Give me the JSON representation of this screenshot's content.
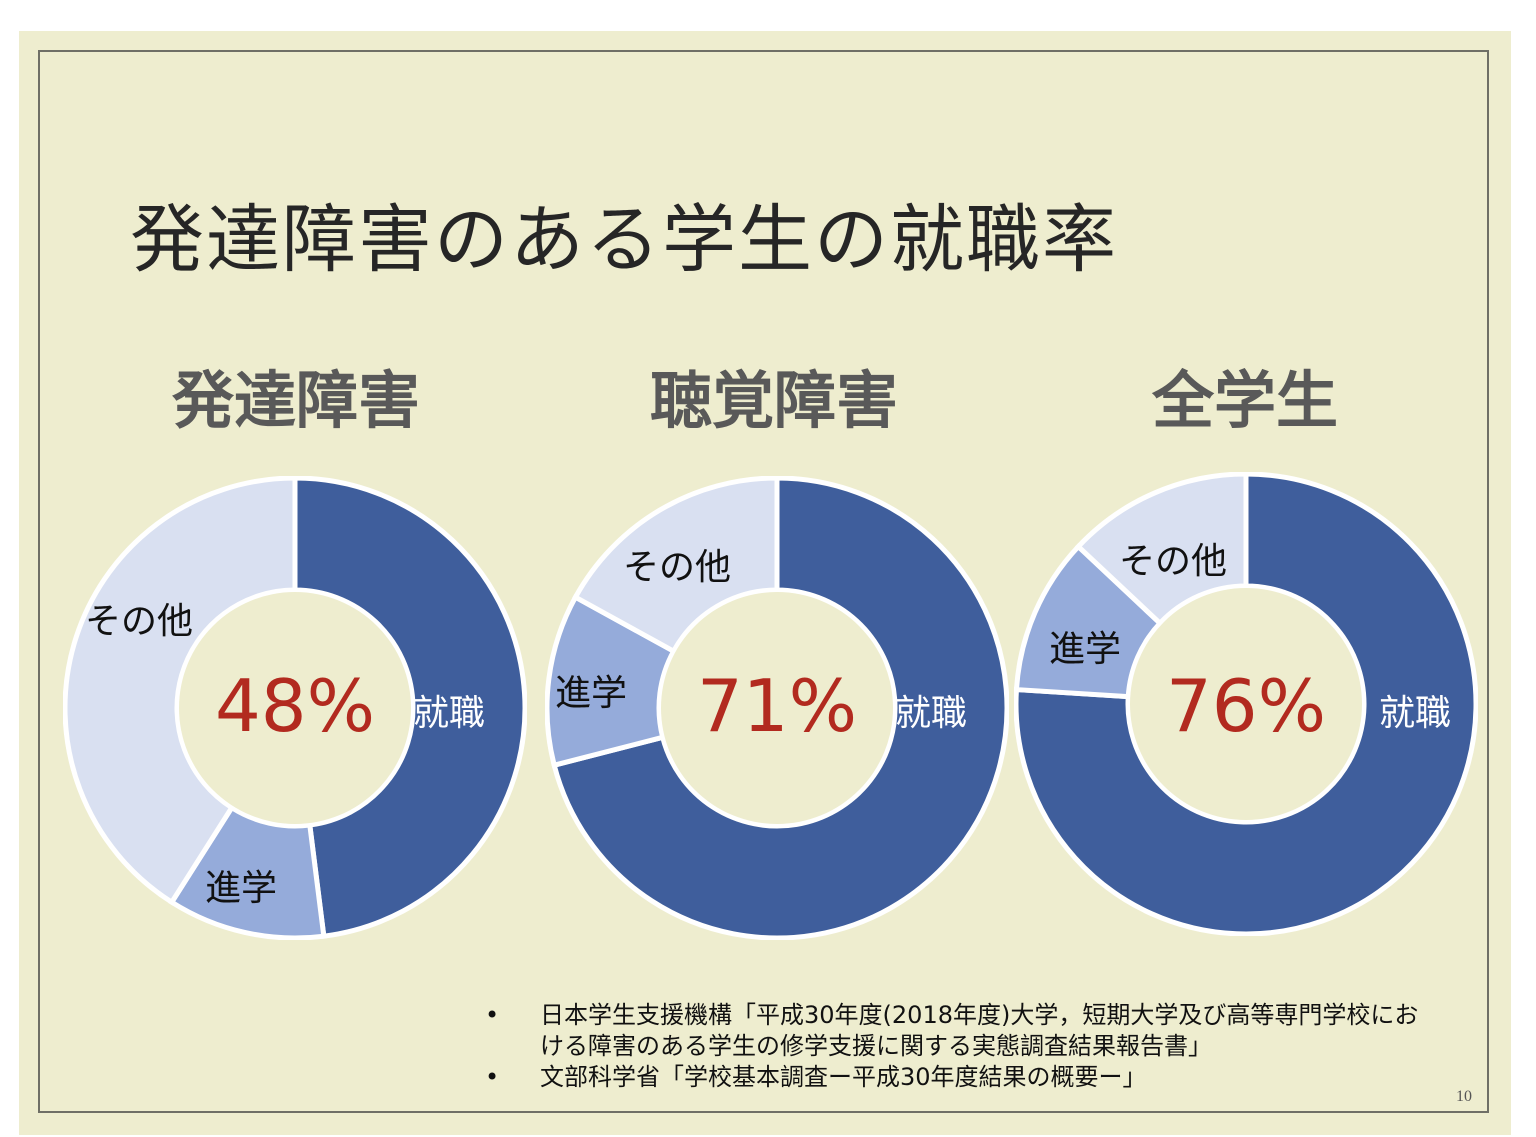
{
  "slide": {
    "title": "発達障害のある学生の就職率",
    "page_number": "10",
    "background": "#eeedcf"
  },
  "colors": {
    "employment": "#3f5e9c",
    "further_study": "#95abda",
    "other": "#d9e0f1",
    "percent_text": "#b22a1f"
  },
  "charts": [
    {
      "subtitle": "発達障害",
      "center_label": "48%",
      "labels": {
        "employment": "就職",
        "further_study": "進学",
        "other": "その他"
      }
    },
    {
      "subtitle": "聴覚障害",
      "center_label": "71%",
      "labels": {
        "employment": "就職",
        "further_study": "進学",
        "other": "その他"
      }
    },
    {
      "subtitle": "全学生",
      "center_label": "76%",
      "labels": {
        "employment": "就職",
        "further_study": "進学",
        "other": "その他"
      }
    }
  ],
  "references": [
    {
      "bullet": "•",
      "text": "日本学生支援機構「平成30年度(2018年度)大学，短期大学及び高等専門学校における障害のある学生の修学支援に関する実態調査結果報告書」"
    },
    {
      "bullet": "•",
      "text": "文部科学省「学校基本調査ー平成30年度結果の概要ー」"
    }
  ],
  "chart_data": [
    {
      "type": "pie",
      "title": "発達障害",
      "categories": [
        "就職",
        "進学",
        "その他"
      ],
      "values": [
        48,
        11,
        41
      ],
      "center_label": "48%",
      "donut": true
    },
    {
      "type": "pie",
      "title": "聴覚障害",
      "categories": [
        "就職",
        "進学",
        "その他"
      ],
      "values": [
        71,
        12,
        17
      ],
      "center_label": "71%",
      "donut": true
    },
    {
      "type": "pie",
      "title": "全学生",
      "categories": [
        "就職",
        "進学",
        "その他"
      ],
      "values": [
        76,
        11,
        13
      ],
      "center_label": "76%",
      "donut": true
    }
  ]
}
